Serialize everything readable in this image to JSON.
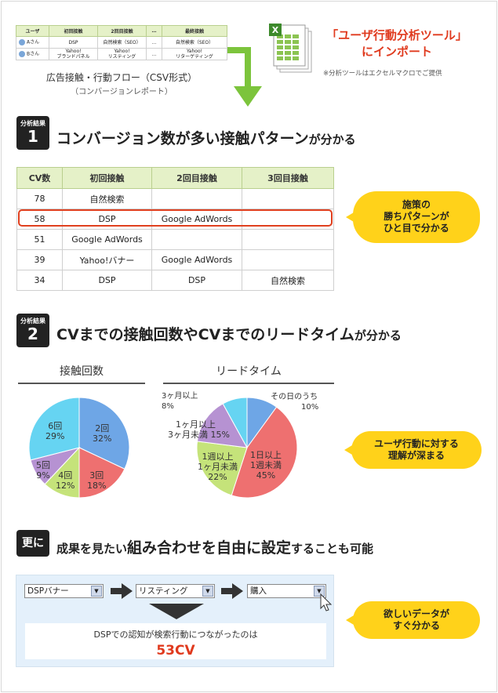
{
  "flow_table": {
    "headers": [
      "ユーザ",
      "初回接触",
      "2回目接触",
      "…",
      "最終接触"
    ],
    "rows": [
      [
        "Aさん",
        "DSP",
        "自然検索（SEO）",
        "…",
        "自然検索（SEO）"
      ],
      [
        "Bさん",
        "Yahoo!\nブランドパネル",
        "Yahoo!\nリスティング",
        "…",
        "Yahoo!\nリターゲティング"
      ]
    ]
  },
  "flow_caption": "広告接触・行動フロー（CSV形式）",
  "flow_subcaption": "（コンバージョンレポート）",
  "import": {
    "line1": "「ユーザ行動分析ツール」",
    "line2": "にインポート",
    "note": "※分析ツールはエクセルマクロでご提供"
  },
  "section1": {
    "badge_label": "分析結果",
    "badge_num": "1",
    "title_big": "コンバージョン数が多い接触パターン",
    "title_small": "が分かる",
    "table_headers": [
      "CV数",
      "初回接触",
      "2回目接触",
      "3回目接触"
    ],
    "rows": [
      [
        "78",
        "自然検索",
        "",
        ""
      ],
      [
        "58",
        "DSP",
        "Google AdWords",
        ""
      ],
      [
        "51",
        "Google AdWords",
        "",
        ""
      ],
      [
        "39",
        "Yahoo!バナー",
        "Google AdWords",
        ""
      ],
      [
        "34",
        "DSP",
        "DSP",
        "自然検索"
      ]
    ],
    "bubble": [
      "施策の",
      "勝ちパターンが",
      "ひと目で分かる"
    ]
  },
  "section2": {
    "badge_label": "分析結果",
    "badge_num": "2",
    "title_big": "CVまでの接触回数やCVまでのリードタイム",
    "title_small": "が分かる",
    "bubble": [
      "ユーザ行動に対する",
      "理解が深まる"
    ]
  },
  "chart_data": [
    {
      "type": "pie",
      "title": "接触回数",
      "labels": [
        "2回",
        "3回",
        "4回",
        "5回",
        "6回"
      ],
      "values": [
        32,
        18,
        12,
        9,
        29
      ],
      "colors": [
        "#6ea6e6",
        "#ee7070",
        "#c5e37a",
        "#b692d2",
        "#66d4f2"
      ]
    },
    {
      "type": "pie",
      "title": "リードタイム",
      "labels": [
        "その日のうち",
        "1日以上1週未満",
        "1週以上1ヶ月未満",
        "1ヶ月以上3ヶ月未満",
        "3ヶ月以上"
      ],
      "values": [
        10,
        45,
        22,
        15,
        8
      ],
      "colors": [
        "#6ea6e6",
        "#ee7070",
        "#c5e37a",
        "#b692d2",
        "#66d4f2"
      ]
    }
  ],
  "pie_labels": {
    "p1": {
      "a": "2回",
      "a_v": "32%",
      "b": "3回",
      "b_v": "18%",
      "c": "4回",
      "c_v": "12%",
      "d": "5回",
      "d_v": "9%",
      "e": "6回",
      "e_v": "29%"
    },
    "p2": {
      "a": "その日のうち",
      "a_v": "10%",
      "b1": "1日以上",
      "b2": "1週未満",
      "b_v": "45%",
      "c1": "1週以上",
      "c2": "1ヶ月未満",
      "c_v": "22%",
      "d1": "1ヶ月以上",
      "d2": "3ヶ月未満",
      "d_v": "15%",
      "e": "3ヶ月以上",
      "e_v": "8%"
    }
  },
  "section3": {
    "badge_label": "更に",
    "title_a": "成果を見たい",
    "title_b": "組み合わせを自由に設定",
    "title_c": "することも可能",
    "selects": [
      "DSPバナー",
      "リスティング",
      "購入"
    ],
    "result_text": "DSPでの認知が検索行動につながったのは",
    "result_value": "53CV",
    "bubble": [
      "欲しいデータが",
      "すぐ分かる"
    ]
  }
}
